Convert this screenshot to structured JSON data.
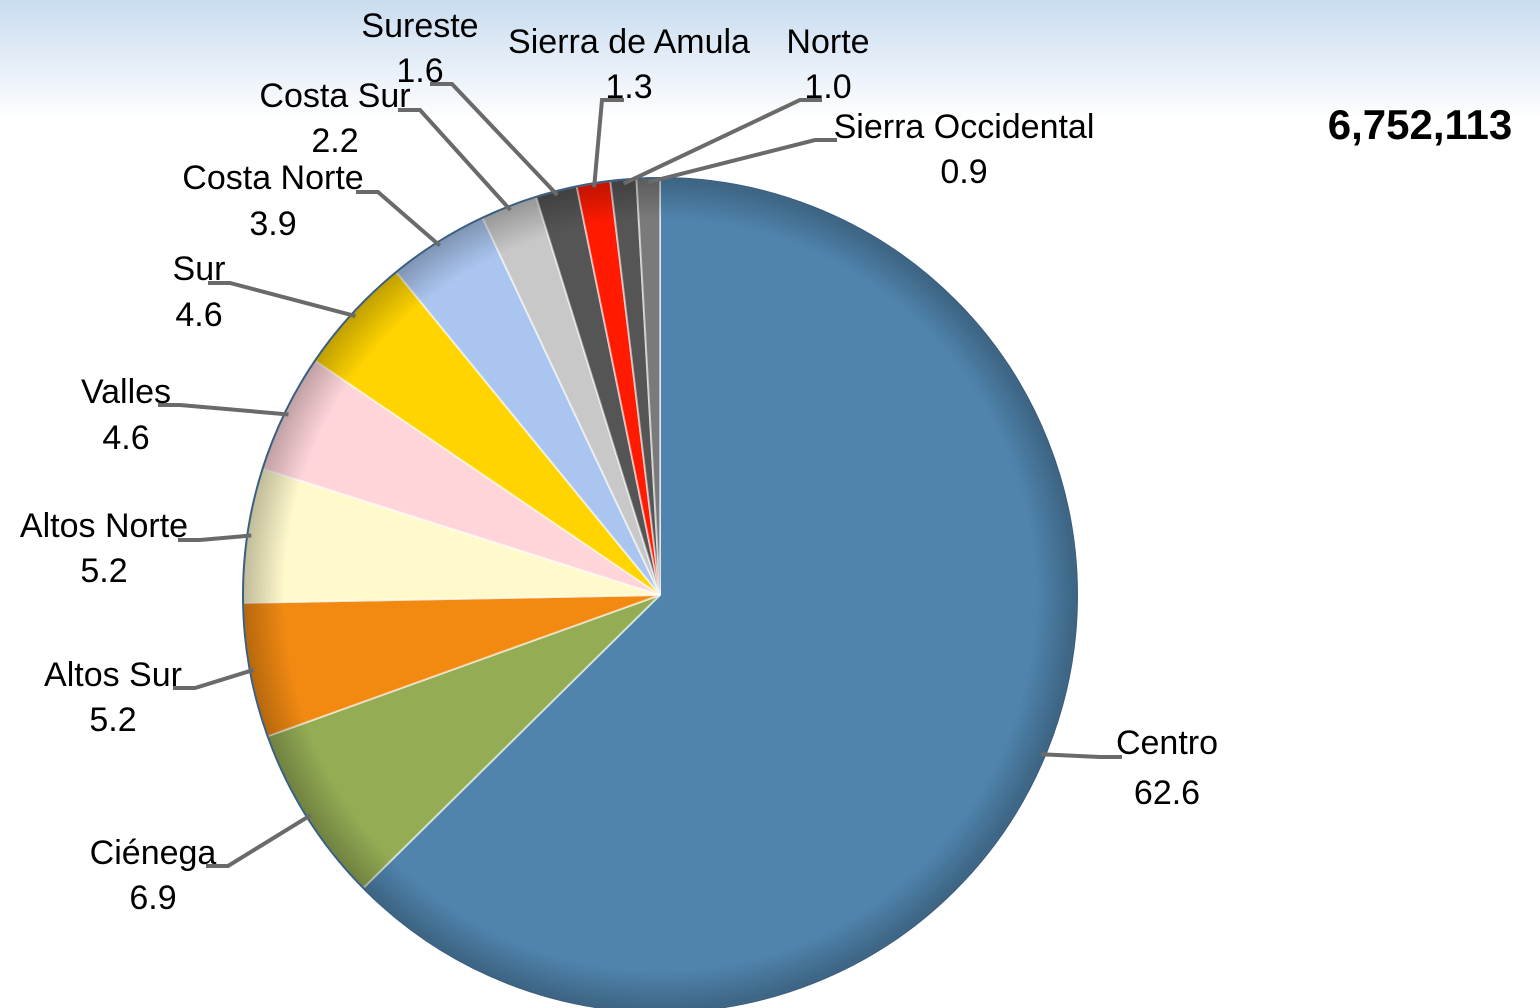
{
  "chart_data": {
    "type": "pie",
    "categories": [
      "Centro",
      "Ciénega",
      "Altos Sur",
      "Altos Norte",
      "Valles",
      "Sur",
      "Costa Norte",
      "Costa Sur",
      "Sureste",
      "Sierra de Amula",
      "Norte",
      "Sierra Occidental"
    ],
    "values": [
      62.6,
      6.9,
      5.2,
      5.2,
      4.6,
      4.6,
      3.9,
      2.2,
      1.6,
      1.3,
      1.0,
      0.9
    ],
    "value_labels": [
      "62.6",
      "6.9",
      "5.2",
      "5.2",
      "4.6",
      "4.6",
      "3.9",
      "2.2",
      "1.6",
      "1.3",
      "1.0",
      "0.9"
    ],
    "colors": [
      "#5084ad",
      "#94ad55",
      "#f28a12",
      "#fff9cc",
      "#ffd5da",
      "#ffd400",
      "#aac6f0",
      "#c8c8c8",
      "#555555",
      "#ff1a00",
      "#555555",
      "#7a7a7a"
    ],
    "label_colors": [
      "#c0260f",
      "#000000",
      "#000000",
      "#000000",
      "#000000",
      "#000000",
      "#000000",
      "#000000",
      "#000000",
      "#000000",
      "#000000",
      "#000000"
    ],
    "annotation": "6,752,113"
  }
}
